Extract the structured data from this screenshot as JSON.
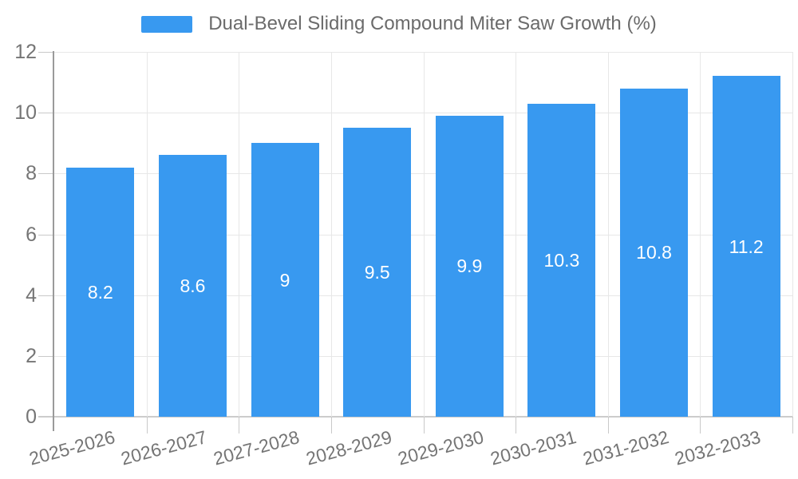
{
  "chart_data": {
    "type": "bar",
    "title": "Dual-Bevel Sliding Compound Miter Saw Growth (%)",
    "categories": [
      "2025-2026",
      "2026-2027",
      "2027-2028",
      "2028-2029",
      "2029-2030",
      "2030-2031",
      "2031-2032",
      "2032-2033"
    ],
    "values": [
      8.2,
      8.6,
      9,
      9.5,
      9.9,
      10.3,
      10.8,
      11.2
    ],
    "value_labels": [
      "8.2",
      "8.6",
      "9",
      "9.5",
      "9.9",
      "10.3",
      "10.8",
      "11.2"
    ],
    "xlabel": "",
    "ylabel": "",
    "ylim": [
      0,
      12
    ],
    "yticks": [
      0,
      2,
      4,
      6,
      8,
      10,
      12
    ],
    "grid": true,
    "legend_position": "top",
    "colors": {
      "bar": "#3899F0",
      "value_label": "#FFFFFF",
      "axis_text": "#757575",
      "legend_text": "#6B6B6B",
      "grid_line": "#E7E7E7",
      "tick_line": "#C9C9C9",
      "axis_line": "#9A9A9A",
      "baseline": "#CCCCCC",
      "background": "#FFFFFF"
    }
  }
}
